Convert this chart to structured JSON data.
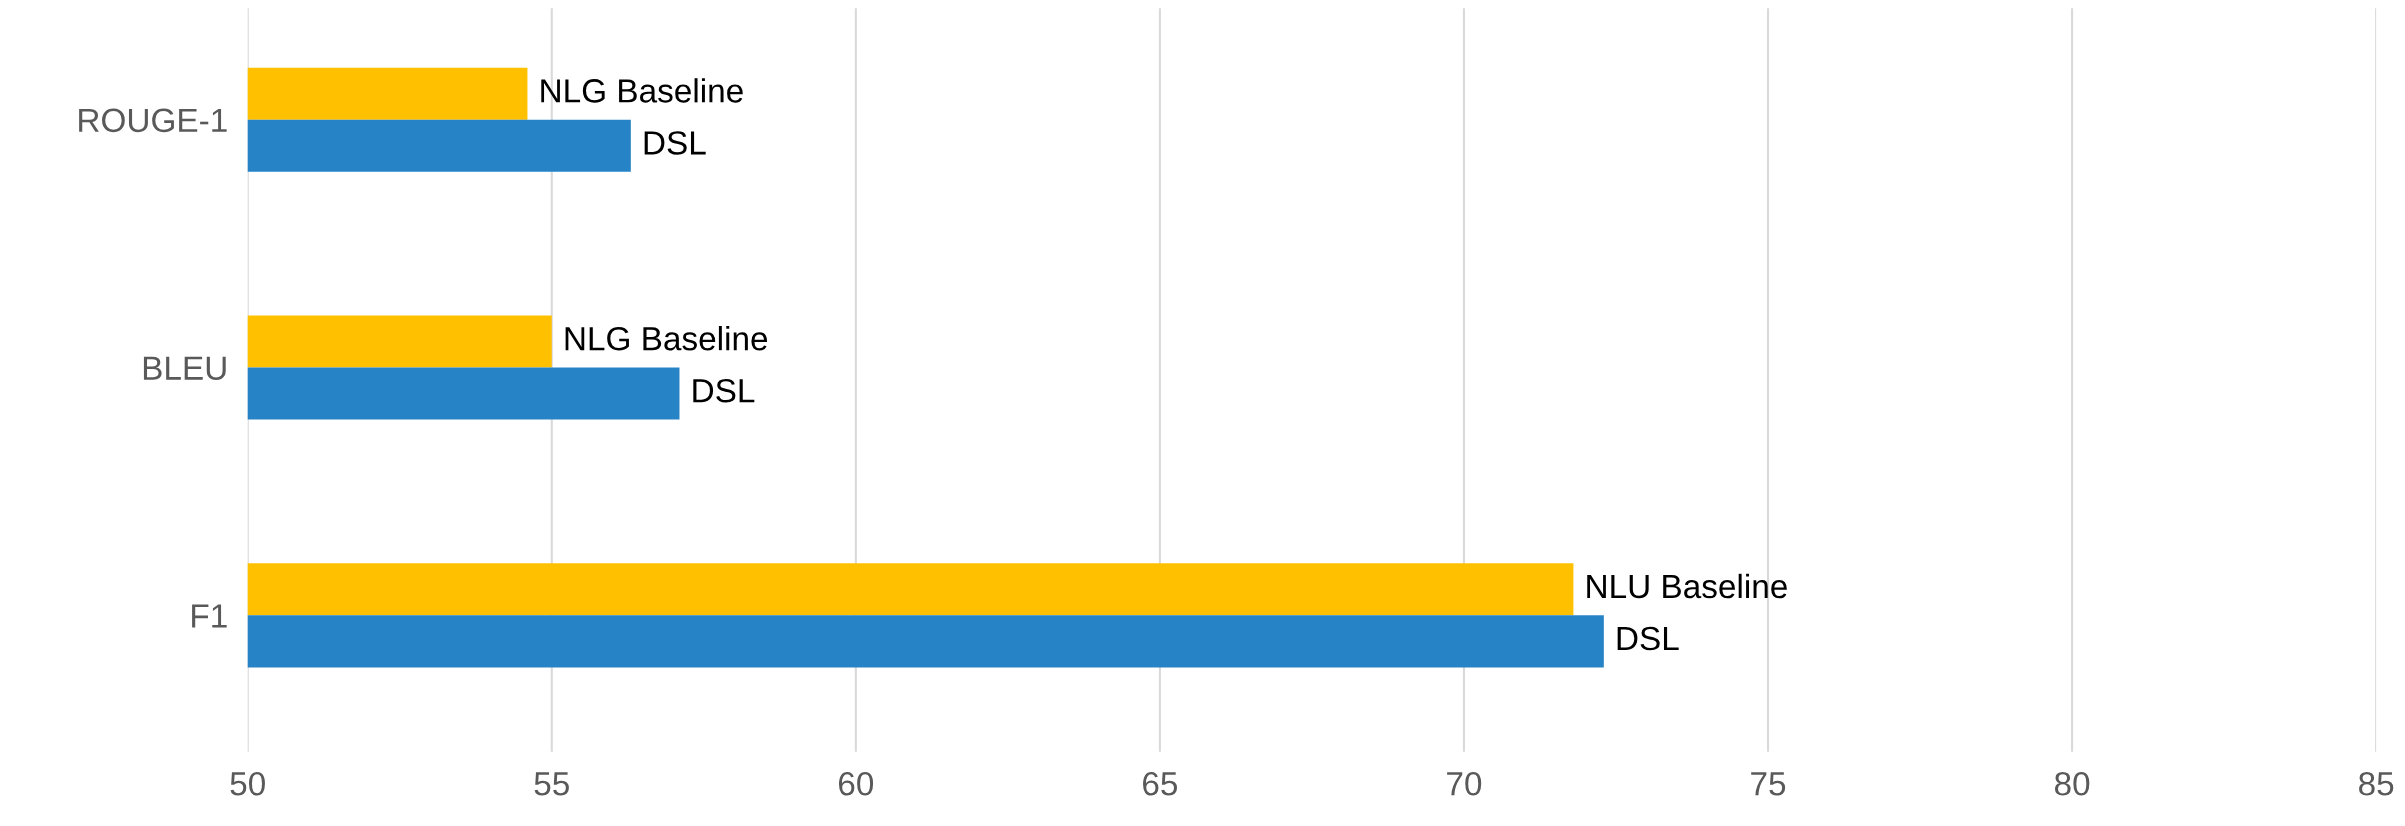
{
  "chart_data": {
    "type": "bar",
    "orientation": "horizontal",
    "categories": [
      "ROUGE-1",
      "BLEU",
      "F1"
    ],
    "series": [
      {
        "color": "#ffc000",
        "values": [
          54.6,
          55.0,
          71.8
        ],
        "value_labels": [
          "NLG Baseline",
          "NLG Baseline",
          "NLU Baseline"
        ]
      },
      {
        "color": "#2683c6",
        "values": [
          56.3,
          57.1,
          72.3
        ],
        "value_labels": [
          "DSL",
          "DSL",
          "DSL"
        ]
      }
    ],
    "xlim": [
      50,
      85
    ],
    "xticks": [
      50,
      55,
      60,
      65,
      70,
      75,
      80,
      85
    ],
    "grid": "x",
    "legend": false
  }
}
